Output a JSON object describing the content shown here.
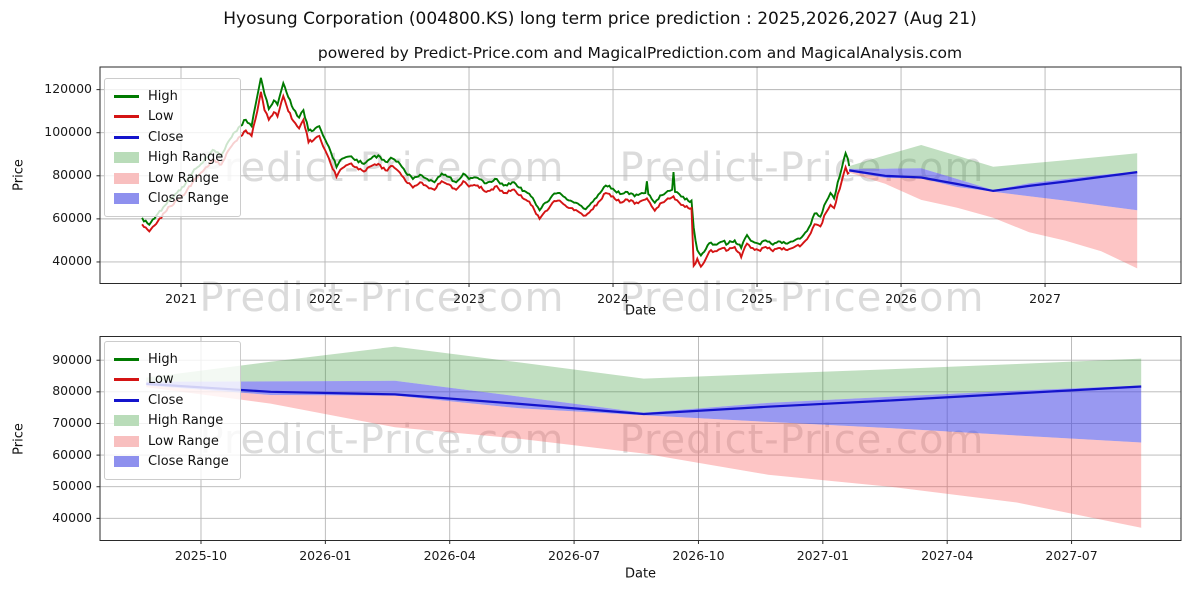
{
  "title": "Hyosung Corporation (004800.KS) long term price prediction : 2025,2026,2027 (Aug 21)",
  "subtitle": "powered by Predict-Price.com and MagicalPrediction.com and MagicalAnalysis.com",
  "watermark": {
    "text": "Predict-Price.com"
  },
  "colors": {
    "high_line": "#007a00",
    "low_line": "#d41414",
    "close_line": "#1414cc",
    "high_band": "rgba(50,150,50,0.30)",
    "low_band": "rgba(250,80,80,0.33)",
    "close_band": "rgba(70,70,230,0.55)",
    "legend_high_band": "#b9dcb9",
    "legend_low_band": "#f8bfbf",
    "legend_close_band": "#8e90ee",
    "grid": "#b5b5b5",
    "spine": "#2a2a2a"
  },
  "legend_items": [
    {
      "label": "High",
      "type": "line",
      "color_key": "high_line"
    },
    {
      "label": "Low",
      "type": "line",
      "color_key": "low_line"
    },
    {
      "label": "Close",
      "type": "line",
      "color_key": "close_line"
    },
    {
      "label": "High Range",
      "type": "patch",
      "color_key": "legend_high_band"
    },
    {
      "label": "Low Range",
      "type": "patch",
      "color_key": "legend_low_band"
    },
    {
      "label": "Close Range",
      "type": "patch",
      "color_key": "legend_close_band"
    }
  ],
  "chart_data": [
    {
      "type": "line",
      "title": "historical prices 2020-2025 with prediction bands to 2027",
      "xlabel": "Date",
      "ylabel": "Price",
      "legend_position": "upper left",
      "grid": true,
      "x_range": [
        2020.4375,
        2027.944
      ],
      "y_range": [
        30000,
        130500
      ],
      "x_ticks": [
        2021,
        2022,
        2023,
        2024,
        2025,
        2026,
        2027
      ],
      "x_tick_labels": [
        "2021",
        "2022",
        "2023",
        "2024",
        "2025",
        "2026",
        "2027"
      ],
      "y_ticks": [
        40000,
        60000,
        80000,
        100000,
        120000
      ],
      "y_tick_labels": [
        "40000",
        "60000",
        "80000",
        "100000",
        "120000"
      ],
      "history_keypoints": {
        "comment": "columns: year, close, high, low (daily noise re-added on render)",
        "points": [
          [
            2020.73,
            59500,
            60500,
            57500
          ],
          [
            2020.78,
            55800,
            57300,
            54200
          ],
          [
            2020.84,
            61000,
            62500,
            59000
          ],
          [
            2020.9,
            65500,
            67000,
            63800
          ],
          [
            2020.96,
            70000,
            71500,
            68200
          ],
          [
            2021.02,
            73000,
            75000,
            71000
          ],
          [
            2021.08,
            79000,
            81500,
            76800
          ],
          [
            2021.15,
            84000,
            86000,
            82000
          ],
          [
            2021.22,
            89500,
            92000,
            87300
          ],
          [
            2021.28,
            87500,
            89500,
            85200
          ],
          [
            2021.34,
            95000,
            97000,
            92800
          ],
          [
            2021.4,
            100000,
            102500,
            97800
          ],
          [
            2021.45,
            103500,
            106000,
            101000
          ],
          [
            2021.49,
            101000,
            103000,
            98500
          ],
          [
            2021.53,
            114000,
            117000,
            110000
          ],
          [
            2021.555,
            123000,
            125500,
            119000
          ],
          [
            2021.58,
            113500,
            118000,
            110500
          ],
          [
            2021.61,
            108500,
            111000,
            106000
          ],
          [
            2021.645,
            112500,
            115000,
            109500
          ],
          [
            2021.67,
            110000,
            113000,
            107500
          ],
          [
            2021.71,
            120500,
            123000,
            117000
          ],
          [
            2021.745,
            113000,
            116500,
            110000
          ],
          [
            2021.78,
            108000,
            111000,
            105500
          ],
          [
            2021.82,
            104500,
            107000,
            102000
          ],
          [
            2021.85,
            108500,
            110500,
            106000
          ],
          [
            2021.885,
            97500,
            101000,
            95500
          ],
          [
            2021.92,
            99000,
            101000,
            96500
          ],
          [
            2021.96,
            101000,
            103000,
            98500
          ],
          [
            2022.0,
            94500,
            97000,
            92000
          ],
          [
            2022.04,
            88000,
            91000,
            85500
          ],
          [
            2022.08,
            81500,
            84000,
            79500
          ],
          [
            2022.12,
            86000,
            88000,
            83500
          ],
          [
            2022.17,
            87500,
            89000,
            85500
          ],
          [
            2022.22,
            86000,
            87500,
            84000
          ],
          [
            2022.27,
            84000,
            85500,
            82000
          ],
          [
            2022.32,
            86500,
            88000,
            84500
          ],
          [
            2022.37,
            87500,
            89500,
            85500
          ],
          [
            2022.42,
            84500,
            86500,
            82500
          ],
          [
            2022.47,
            86500,
            88000,
            84500
          ],
          [
            2022.52,
            83500,
            85500,
            81500
          ],
          [
            2022.56,
            79500,
            81500,
            77500
          ],
          [
            2022.61,
            76500,
            78500,
            74500
          ],
          [
            2022.66,
            79000,
            80500,
            77000
          ],
          [
            2022.71,
            77000,
            78500,
            75000
          ],
          [
            2022.76,
            75500,
            77000,
            73500
          ],
          [
            2022.81,
            79500,
            81000,
            77500
          ],
          [
            2022.86,
            78000,
            79500,
            76000
          ],
          [
            2022.91,
            75500,
            77000,
            73500
          ],
          [
            2022.96,
            79500,
            81000,
            77500
          ],
          [
            2023.0,
            77000,
            78500,
            75000
          ],
          [
            2023.06,
            77500,
            79000,
            75500
          ],
          [
            2023.12,
            74500,
            76500,
            72500
          ],
          [
            2023.18,
            77000,
            78500,
            75000
          ],
          [
            2023.24,
            74000,
            75500,
            72000
          ],
          [
            2023.3,
            75500,
            77000,
            73500
          ],
          [
            2023.36,
            73000,
            74500,
            71000
          ],
          [
            2023.43,
            68500,
            70500,
            66500
          ],
          [
            2023.49,
            62000,
            64000,
            60000
          ],
          [
            2023.53,
            65500,
            67500,
            63500
          ],
          [
            2023.58,
            69500,
            71000,
            67500
          ],
          [
            2023.63,
            70500,
            72000,
            68500
          ],
          [
            2023.68,
            67500,
            69000,
            65500
          ],
          [
            2023.73,
            66000,
            67500,
            64000
          ],
          [
            2023.78,
            64500,
            66000,
            62500
          ],
          [
            2023.81,
            63000,
            64500,
            61500
          ],
          [
            2023.86,
            66500,
            68000,
            64500
          ],
          [
            2023.91,
            70500,
            72000,
            68500
          ],
          [
            2023.95,
            74000,
            75500,
            72000
          ],
          [
            2024.0,
            72500,
            74000,
            70500
          ],
          [
            2024.05,
            69500,
            71500,
            67500
          ],
          [
            2024.1,
            71000,
            72500,
            69000
          ],
          [
            2024.15,
            69000,
            70500,
            67000
          ],
          [
            2024.2,
            70500,
            72000,
            68500
          ],
          [
            2024.225,
            70500,
            72000,
            69000
          ],
          [
            2024.235,
            71000,
            77500,
            69500
          ],
          [
            2024.245,
            70000,
            71500,
            68500
          ],
          [
            2024.29,
            65500,
            67500,
            63800
          ],
          [
            2024.34,
            69500,
            71000,
            67500
          ],
          [
            2024.38,
            71500,
            73000,
            69500
          ],
          [
            2024.41,
            72000,
            73500,
            70000
          ],
          [
            2024.42,
            72500,
            81700,
            70500
          ],
          [
            2024.43,
            71000,
            72500,
            69000
          ],
          [
            2024.46,
            69500,
            71500,
            67500
          ],
          [
            2024.5,
            67500,
            69000,
            65500
          ],
          [
            2024.545,
            67000,
            68500,
            65000
          ],
          [
            2024.56,
            41500,
            56000,
            38200
          ],
          [
            2024.585,
            44000,
            45500,
            41500
          ],
          [
            2024.61,
            40500,
            43000,
            37800
          ],
          [
            2024.645,
            44500,
            46000,
            41500
          ],
          [
            2024.68,
            47500,
            49000,
            45500
          ],
          [
            2024.72,
            46500,
            48000,
            45000
          ],
          [
            2024.76,
            48000,
            49500,
            46500
          ],
          [
            2024.8,
            47000,
            48500,
            45500
          ],
          [
            2024.845,
            48500,
            50000,
            47000
          ],
          [
            2024.89,
            44000,
            46500,
            42200
          ],
          [
            2024.93,
            50500,
            52500,
            48500
          ],
          [
            2024.97,
            48000,
            49500,
            46500
          ],
          [
            2025.01,
            47000,
            48500,
            45500
          ],
          [
            2025.06,
            48500,
            50000,
            47000
          ],
          [
            2025.11,
            46500,
            48000,
            45000
          ],
          [
            2025.16,
            48000,
            49500,
            46500
          ],
          [
            2025.21,
            47000,
            48500,
            45500
          ],
          [
            2025.26,
            48500,
            50000,
            47000
          ],
          [
            2025.31,
            49500,
            51500,
            48000
          ],
          [
            2025.36,
            54000,
            56000,
            52000
          ],
          [
            2025.4,
            60000,
            62500,
            57500
          ],
          [
            2025.44,
            59000,
            61000,
            56500
          ],
          [
            2025.48,
            65500,
            68000,
            63000
          ],
          [
            2025.51,
            70000,
            72000,
            66500
          ],
          [
            2025.535,
            67500,
            69500,
            65000
          ],
          [
            2025.56,
            74500,
            77000,
            71500
          ],
          [
            2025.59,
            81000,
            84000,
            78000
          ],
          [
            2025.615,
            87000,
            90500,
            84000
          ],
          [
            2025.63,
            84000,
            88000,
            81000
          ],
          [
            2025.64,
            82500,
            84500,
            81500
          ]
        ]
      },
      "prediction": {
        "x": [
          2025.64,
          2025.89,
          2026.14,
          2026.39,
          2026.64,
          2026.89,
          2027.14,
          2027.39,
          2027.64
        ],
        "high_top": [
          84500,
          89500,
          94300,
          89300,
          84200,
          85700,
          87200,
          88800,
          90500
        ],
        "close_top": [
          83200,
          83300,
          83500,
          78500,
          73400,
          76500,
          78500,
          80400,
          82000
        ],
        "close": [
          82500,
          80000,
          79200,
          76200,
          73000,
          75300,
          77300,
          79500,
          81700
        ],
        "close_bottom": [
          82000,
          79000,
          78800,
          74800,
          72600,
          70500,
          68500,
          66200,
          64000
        ],
        "low_bottom": [
          81500,
          76300,
          68800,
          65200,
          60500,
          53800,
          49900,
          45000,
          37000
        ]
      }
    },
    {
      "type": "area",
      "title": "prediction detail Aug 2025 - Aug 2027",
      "xlabel": "Date",
      "ylabel": "Price",
      "legend_position": "upper left",
      "grid": true,
      "x_range": [
        2025.547,
        2027.72
      ],
      "y_range": [
        33000,
        97500
      ],
      "x_ticks": [
        2025.75,
        2026.0,
        2026.25,
        2026.5,
        2026.75,
        2027.0,
        2027.25,
        2027.5
      ],
      "x_tick_labels": [
        "2025-10",
        "2026-01",
        "2026-04",
        "2026-07",
        "2026-10",
        "2027-01",
        "2027-04",
        "2027-07"
      ],
      "y_ticks": [
        40000,
        50000,
        60000,
        70000,
        80000,
        90000
      ],
      "y_tick_labels": [
        "40000",
        "50000",
        "60000",
        "70000",
        "80000",
        "90000"
      ],
      "prediction_ref": 0
    }
  ]
}
